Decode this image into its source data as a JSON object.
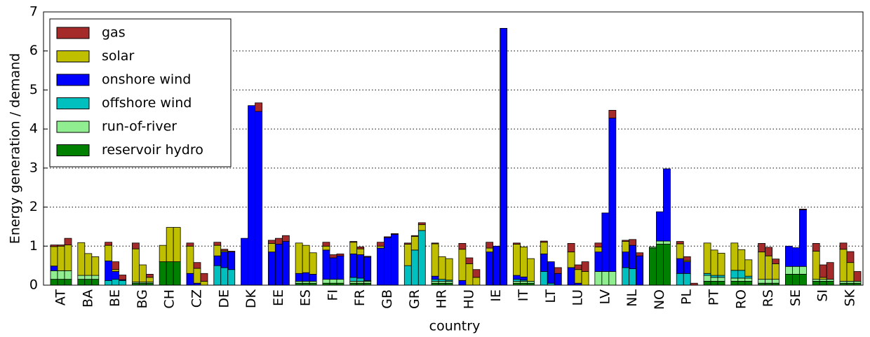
{
  "chart_data": {
    "type": "bar",
    "stacked": true,
    "x_label": "country",
    "y_label": "Energy generation / demand",
    "categories": [
      "AT",
      "BA",
      "BE",
      "BG",
      "CH",
      "CZ",
      "DE",
      "DK",
      "EE",
      "ES",
      "FI",
      "FR",
      "GB",
      "GR",
      "HR",
      "HU",
      "IE",
      "IT",
      "LT",
      "LU",
      "LV",
      "NL",
      "NO",
      "PL",
      "PT",
      "RO",
      "RS",
      "SE",
      "SI",
      "SK"
    ],
    "ylim": [
      0,
      7
    ],
    "yticks": [
      0,
      1,
      2,
      3,
      4,
      5,
      6,
      7
    ],
    "grid": true,
    "legend": "upper left",
    "series": [
      {
        "name": "gas",
        "color": "#a52a2a",
        "values": [
          [
            0.04,
            0.03,
            0.17
          ],
          [
            0,
            0,
            0
          ],
          [
            0.08,
            0.2,
            0.12
          ],
          [
            0.15,
            0,
            0.08
          ],
          [
            0,
            0,
            0
          ],
          [
            0.08,
            0.15,
            0.2
          ],
          [
            0.08,
            0.04,
            0.02
          ],
          [
            0,
            0,
            0.22
          ],
          [
            0.08,
            0.15,
            0.15
          ],
          [
            0,
            0,
            0
          ],
          [
            0.1,
            0.08,
            0.05
          ],
          [
            0.02,
            0.05,
            0.02
          ],
          [
            0.1,
            0.02,
            0.02
          ],
          [
            0.03,
            0.02,
            0.05
          ],
          [
            0.02,
            0,
            0
          ],
          [
            0.15,
            0.15,
            0.2
          ],
          [
            0.15,
            0,
            0
          ],
          [
            0.03,
            0,
            0
          ],
          [
            0.03,
            0,
            0.15
          ],
          [
            0.22,
            0.12,
            0.25
          ],
          [
            0.1,
            0,
            0.2
          ],
          [
            0.03,
            0.15,
            0.08
          ],
          [
            0,
            0,
            0
          ],
          [
            0.06,
            0.1,
            0.05
          ],
          [
            0,
            0,
            0
          ],
          [
            0,
            0,
            0
          ],
          [
            0.22,
            0.22,
            0.12
          ],
          [
            0,
            0,
            0.02
          ],
          [
            0.2,
            0.32,
            0.43
          ],
          [
            0.16,
            0.28,
            0.25
          ]
        ]
      },
      {
        "name": "solar",
        "color": "#bfbf00",
        "values": [
          [
            0.5,
            0.63,
            0.66
          ],
          [
            0.84,
            0.56,
            0.48
          ],
          [
            0.4,
            0.05,
            0
          ],
          [
            0.85,
            0.44,
            0.12
          ],
          [
            0.42,
            0.88,
            0.88
          ],
          [
            0.7,
            0.38,
            0.1
          ],
          [
            0.27,
            0.03,
            0
          ],
          [
            0,
            0,
            0
          ],
          [
            0.22,
            0,
            0
          ],
          [
            0.78,
            0.7,
            0.55
          ],
          [
            0.1,
            0,
            0
          ],
          [
            0.3,
            0.15,
            0
          ],
          [
            0.05,
            0,
            0
          ],
          [
            0.55,
            0.35,
            0.15
          ],
          [
            0.83,
            0.58,
            0.55
          ],
          [
            0.8,
            0.55,
            0.2
          ],
          [
            0.1,
            0,
            0
          ],
          [
            0.8,
            0.77,
            0.58
          ],
          [
            0.3,
            0,
            0
          ],
          [
            0.4,
            0.35,
            0.35
          ],
          [
            0.13,
            0,
            0
          ],
          [
            0.27,
            0,
            0
          ],
          [
            0,
            0,
            0
          ],
          [
            0.38,
            0.03,
            0
          ],
          [
            0.78,
            0.65,
            0.57
          ],
          [
            0.7,
            0.53,
            0.42
          ],
          [
            0.7,
            0.6,
            0.4
          ],
          [
            0,
            0,
            0
          ],
          [
            0.72,
            0.05,
            0
          ],
          [
            0.82,
            0.48,
            0
          ]
        ]
      },
      {
        "name": "onshore wind",
        "color": "#0000ff",
        "values": [
          [
            0.12,
            0,
            0
          ],
          [
            0,
            0,
            0
          ],
          [
            0.5,
            0.2,
            0.02
          ],
          [
            0,
            0,
            0
          ],
          [
            0,
            0,
            0
          ],
          [
            0.3,
            0.05,
            0
          ],
          [
            0.25,
            0.4,
            0.45
          ],
          [
            1.2,
            4.6,
            4.45
          ],
          [
            0.85,
            1.05,
            1.12
          ],
          [
            0.2,
            0.22,
            0.18
          ],
          [
            0.75,
            0.55,
            0.6
          ],
          [
            0.6,
            0.6,
            0.6
          ],
          [
            0.95,
            1.22,
            1.3
          ],
          [
            0,
            0,
            0
          ],
          [
            0.08,
            0,
            0
          ],
          [
            0.12,
            0,
            0
          ],
          [
            0.85,
            1,
            6.58
          ],
          [
            0.1,
            0.08,
            0
          ],
          [
            0.45,
            0.55,
            0.3
          ],
          [
            0.45,
            0.05,
            0
          ],
          [
            0.5,
            1.5,
            3.93
          ],
          [
            0.4,
            0.6,
            0.75
          ],
          [
            0,
            0.75,
            1.85
          ],
          [
            0.38,
            0.3,
            0
          ],
          [
            0,
            0,
            0
          ],
          [
            0,
            0,
            0
          ],
          [
            0,
            0,
            0
          ],
          [
            0.52,
            0.48,
            1.45
          ],
          [
            0,
            0,
            0
          ],
          [
            0,
            0,
            0
          ]
        ]
      },
      {
        "name": "offshore wind",
        "color": "#00bfbf",
        "values": [
          [
            0,
            0,
            0
          ],
          [
            0,
            0,
            0
          ],
          [
            0.12,
            0.15,
            0.12
          ],
          [
            0,
            0,
            0
          ],
          [
            0,
            0,
            0
          ],
          [
            0,
            0,
            0
          ],
          [
            0.5,
            0.45,
            0.4
          ],
          [
            0,
            0,
            0
          ],
          [
            0,
            0,
            0
          ],
          [
            0,
            0,
            0
          ],
          [
            0,
            0,
            0
          ],
          [
            0.1,
            0.08,
            0.02
          ],
          [
            0,
            0,
            0
          ],
          [
            0.5,
            0.9,
            1.4
          ],
          [
            0.05,
            0.05,
            0.03
          ],
          [
            0,
            0,
            0
          ],
          [
            0,
            0,
            0
          ],
          [
            0.05,
            0.03,
            0
          ],
          [
            0.35,
            0.05,
            0
          ],
          [
            0,
            0,
            0
          ],
          [
            0,
            0,
            0
          ],
          [
            0.45,
            0.42,
            0
          ],
          [
            0,
            0,
            0
          ],
          [
            0.3,
            0.3,
            0
          ],
          [
            0.05,
            0.05,
            0.05
          ],
          [
            0.2,
            0.2,
            0.05
          ],
          [
            0,
            0,
            0
          ],
          [
            0,
            0,
            0
          ],
          [
            0,
            0,
            0
          ],
          [
            0,
            0,
            0
          ]
        ]
      },
      {
        "name": "run-of-river",
        "color": "#90ee90",
        "values": [
          [
            0.22,
            0.22,
            0.22
          ],
          [
            0.1,
            0.1,
            0.1
          ],
          [
            0,
            0,
            0
          ],
          [
            0.03,
            0.03,
            0.03
          ],
          [
            0,
            0,
            0
          ],
          [
            0,
            0,
            0
          ],
          [
            0,
            0,
            0
          ],
          [
            0,
            0,
            0
          ],
          [
            0,
            0,
            0
          ],
          [
            0.05,
            0.05,
            0.05
          ],
          [
            0.1,
            0.1,
            0.1
          ],
          [
            0.05,
            0.05,
            0.05
          ],
          [
            0,
            0,
            0
          ],
          [
            0,
            0,
            0
          ],
          [
            0.05,
            0.05,
            0.05
          ],
          [
            0,
            0,
            0
          ],
          [
            0,
            0,
            0
          ],
          [
            0.05,
            0.05,
            0.05
          ],
          [
            0,
            0,
            0
          ],
          [
            0,
            0,
            0
          ],
          [
            0.35,
            0.35,
            0.35
          ],
          [
            0,
            0,
            0
          ],
          [
            0.03,
            0.08,
            0.08
          ],
          [
            0,
            0,
            0
          ],
          [
            0.15,
            0.1,
            0.1
          ],
          [
            0.08,
            0.08,
            0.08
          ],
          [
            0.1,
            0.1,
            0.1
          ],
          [
            0.2,
            0.2,
            0.2
          ],
          [
            0.05,
            0.05,
            0.05
          ],
          [
            0.05,
            0.05,
            0.05
          ]
        ]
      },
      {
        "name": "reservoir hydro",
        "color": "#008000",
        "values": [
          [
            0.15,
            0.15,
            0.15
          ],
          [
            0.15,
            0.15,
            0.15
          ],
          [
            0,
            0,
            0
          ],
          [
            0.05,
            0.05,
            0.05
          ],
          [
            0.6,
            0.6,
            0.6
          ],
          [
            0,
            0,
            0
          ],
          [
            0,
            0,
            0
          ],
          [
            0,
            0,
            0
          ],
          [
            0,
            0,
            0
          ],
          [
            0.05,
            0.05,
            0.05
          ],
          [
            0.05,
            0.05,
            0.05
          ],
          [
            0.05,
            0.05,
            0.05
          ],
          [
            0,
            0,
            0
          ],
          [
            0,
            0,
            0
          ],
          [
            0.05,
            0.05,
            0.05
          ],
          [
            0,
            0,
            0
          ],
          [
            0,
            0,
            0
          ],
          [
            0.05,
            0.05,
            0.05
          ],
          [
            0,
            0,
            0
          ],
          [
            0,
            0,
            0
          ],
          [
            0,
            0,
            0
          ],
          [
            0,
            0,
            0
          ],
          [
            0.95,
            1.05,
            1.05
          ],
          [
            0,
            0,
            0
          ],
          [
            0.1,
            0.1,
            0.1
          ],
          [
            0.1,
            0.1,
            0.1
          ],
          [
            0.05,
            0.05,
            0.05
          ],
          [
            0.28,
            0.28,
            0.28
          ],
          [
            0.1,
            0.1,
            0.1
          ],
          [
            0.05,
            0.05,
            0.05
          ]
        ]
      }
    ]
  }
}
